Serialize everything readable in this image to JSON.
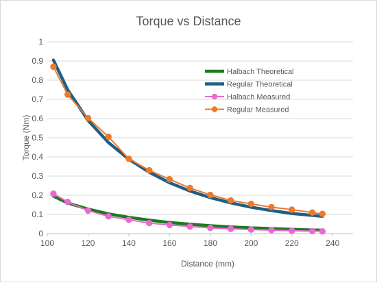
{
  "chart_data": {
    "type": "line",
    "title": "Torque vs Distance",
    "xlabel": "Distance (mm)",
    "ylabel": "Torque (Nm)",
    "xlim": [
      100,
      250
    ],
    "ylim": [
      0,
      1
    ],
    "x_ticks": [
      100,
      120,
      140,
      160,
      180,
      200,
      220,
      240
    ],
    "y_ticks": [
      0,
      0.1,
      0.2,
      0.3,
      0.4,
      0.5,
      0.6,
      0.7,
      0.8,
      0.9,
      1
    ],
    "y_tick_labels": [
      "0",
      "0.1",
      "0.2",
      "0.3",
      "0.4",
      "0.5",
      "0.6",
      "0.7",
      "0.8",
      "0.9",
      "1"
    ],
    "grid": "horizontal",
    "legend_position": "right",
    "series": [
      {
        "name": "Halbach Theoretical",
        "color": "#1e7a1e",
        "kind": "line",
        "x": [
          103,
          110,
          120,
          130,
          140,
          150,
          160,
          170,
          180,
          190,
          200,
          210,
          220,
          230,
          235
        ],
        "values": [
          0.195,
          0.16,
          0.128,
          0.103,
          0.085,
          0.07,
          0.058,
          0.049,
          0.041,
          0.035,
          0.03,
          0.026,
          0.022,
          0.019,
          0.018
        ]
      },
      {
        "name": "Regular Theoretical",
        "color": "#1f5f86",
        "kind": "line",
        "x": [
          103,
          110,
          120,
          130,
          140,
          150,
          160,
          170,
          180,
          190,
          200,
          210,
          220,
          230,
          235
        ],
        "values": [
          0.905,
          0.75,
          0.59,
          0.475,
          0.388,
          0.32,
          0.265,
          0.222,
          0.188,
          0.16,
          0.138,
          0.12,
          0.105,
          0.095,
          0.09
        ]
      },
      {
        "name": "Halbach Measured",
        "color": "#e86ad0",
        "kind": "line-marker",
        "x": [
          103,
          110,
          120,
          130,
          140,
          150,
          160,
          170,
          180,
          190,
          200,
          210,
          220,
          230,
          235
        ],
        "values": [
          0.208,
          0.165,
          0.12,
          0.09,
          0.072,
          0.055,
          0.045,
          0.037,
          0.03,
          0.025,
          0.021,
          0.018,
          0.015,
          0.013,
          0.012
        ]
      },
      {
        "name": "Regular Measured",
        "color": "#ec7a2c",
        "kind": "line-marker",
        "x": [
          103,
          110,
          120,
          130,
          140,
          150,
          160,
          170,
          180,
          190,
          200,
          210,
          220,
          230,
          235
        ],
        "values": [
          0.87,
          0.725,
          0.602,
          0.505,
          0.39,
          0.33,
          0.283,
          0.238,
          0.202,
          0.173,
          0.155,
          0.138,
          0.125,
          0.11,
          0.103
        ]
      }
    ]
  }
}
